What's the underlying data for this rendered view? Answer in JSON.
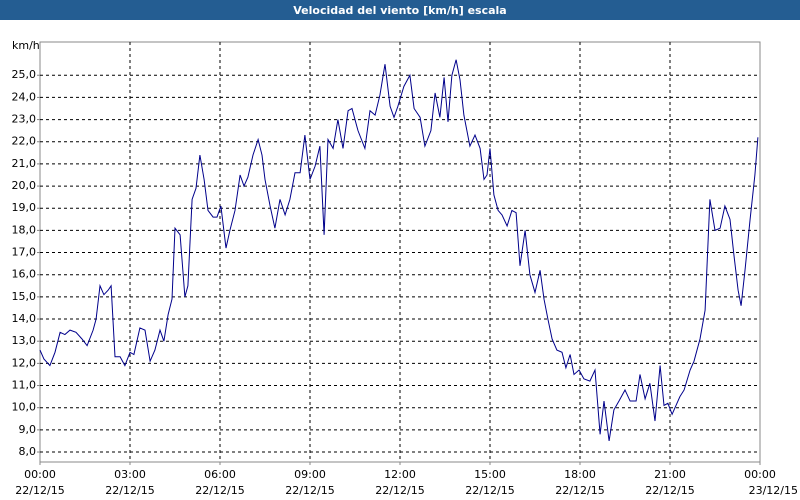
{
  "chart_data": {
    "type": "line",
    "title": "Velocidad del viento [km/h] escala",
    "y_label": "km/h",
    "color": "#00008b",
    "grid": true,
    "x": [
      0,
      0.13,
      0.33,
      0.5,
      0.67,
      0.83,
      1.0,
      1.2,
      1.4,
      1.57,
      1.77,
      1.87,
      2.0,
      2.13,
      2.27,
      2.37,
      2.5,
      2.67,
      2.83,
      3.0,
      3.13,
      3.33,
      3.5,
      3.67,
      3.83,
      4.0,
      4.13,
      4.27,
      4.4,
      4.5,
      4.67,
      4.83,
      4.93,
      5.07,
      5.2,
      5.33,
      5.47,
      5.6,
      5.77,
      5.9,
      6.03,
      6.2,
      6.33,
      6.5,
      6.67,
      6.8,
      6.93,
      7.1,
      7.27,
      7.4,
      7.5,
      7.67,
      7.83,
      8.0,
      8.17,
      8.33,
      8.5,
      8.67,
      8.83,
      9.0,
      9.17,
      9.33,
      9.47,
      9.6,
      9.77,
      9.93,
      10.1,
      10.27,
      10.4,
      10.6,
      10.83,
      11.0,
      11.17,
      11.33,
      11.5,
      11.67,
      11.8,
      11.93,
      12.13,
      12.33,
      12.47,
      12.67,
      12.83,
      13.03,
      13.17,
      13.33,
      13.47,
      13.6,
      13.73,
      13.87,
      14.0,
      14.13,
      14.33,
      14.5,
      14.67,
      14.8,
      14.9,
      15.0,
      15.13,
      15.27,
      15.4,
      15.57,
      15.73,
      15.87,
      16.0,
      16.17,
      16.33,
      16.5,
      16.67,
      16.8,
      16.93,
      17.07,
      17.23,
      17.4,
      17.53,
      17.67,
      17.8,
      17.97,
      18.13,
      18.33,
      18.5,
      18.67,
      18.8,
      18.97,
      19.13,
      19.3,
      19.5,
      19.67,
      19.87,
      20.0,
      20.17,
      20.33,
      20.5,
      20.67,
      20.8,
      20.93,
      21.07,
      21.2,
      21.33,
      21.47,
      21.67,
      21.8,
      22.0,
      22.17,
      22.33,
      22.5,
      22.67,
      22.83,
      23.0,
      23.13,
      23.27,
      23.37,
      23.5,
      23.67,
      23.83,
      23.93
    ],
    "values": [
      12.6,
      12.2,
      11.9,
      12.5,
      13.4,
      13.3,
      13.5,
      13.4,
      13.1,
      12.8,
      13.5,
      14.0,
      15.5,
      15.1,
      15.3,
      15.5,
      12.3,
      12.3,
      11.9,
      12.5,
      12.4,
      13.6,
      13.5,
      12.1,
      12.6,
      13.5,
      13.0,
      14.2,
      14.9,
      18.1,
      17.8,
      15.0,
      15.5,
      19.4,
      19.9,
      21.4,
      20.3,
      18.9,
      18.6,
      18.6,
      19.1,
      17.2,
      18.0,
      18.9,
      20.5,
      20.0,
      20.4,
      21.4,
      22.1,
      21.4,
      20.3,
      19.1,
      18.1,
      19.4,
      18.7,
      19.4,
      20.6,
      20.6,
      22.3,
      20.3,
      20.9,
      21.8,
      17.8,
      22.1,
      21.7,
      23.0,
      21.7,
      23.4,
      23.5,
      22.5,
      21.7,
      23.4,
      23.2,
      24.1,
      25.5,
      23.6,
      23.1,
      23.6,
      24.5,
      25.0,
      23.5,
      23.1,
      21.8,
      22.5,
      24.2,
      23.1,
      24.9,
      22.9,
      25.0,
      25.7,
      24.8,
      23.2,
      21.8,
      22.3,
      21.7,
      20.3,
      20.5,
      21.7,
      19.6,
      18.9,
      18.7,
      18.2,
      18.9,
      18.8,
      16.4,
      18.0,
      16.0,
      15.2,
      16.2,
      14.9,
      14.0,
      13.1,
      12.6,
      12.5,
      11.8,
      12.4,
      11.5,
      11.7,
      11.3,
      11.2,
      11.7,
      8.8,
      10.3,
      8.5,
      9.9,
      10.3,
      10.8,
      10.3,
      10.3,
      11.5,
      10.4,
      11.1,
      9.4,
      11.9,
      10.1,
      10.2,
      9.7,
      10.1,
      10.5,
      10.8,
      11.7,
      12.1,
      13.1,
      14.4,
      19.4,
      18.0,
      18.1,
      19.1,
      18.5,
      16.9,
      15.3,
      14.6,
      16.2,
      18.5,
      20.5,
      22.2
    ],
    "xlim": [
      0,
      24
    ],
    "xticks": [
      {
        "value": 0,
        "label": "00:00",
        "date": "22/12/15"
      },
      {
        "value": 3,
        "label": "03:00",
        "date": "22/12/15"
      },
      {
        "value": 6,
        "label": "06:00",
        "date": "22/12/15"
      },
      {
        "value": 9,
        "label": "09:00",
        "date": "22/12/15"
      },
      {
        "value": 12,
        "label": "12:00",
        "date": "22/12/15"
      },
      {
        "value": 15,
        "label": "15:00",
        "date": "22/12/15"
      },
      {
        "value": 18,
        "label": "18:00",
        "date": "22/12/15"
      },
      {
        "value": 21,
        "label": "21:00",
        "date": "22/12/15"
      },
      {
        "value": 24,
        "label": "00:00",
        "date": "23/12/15"
      }
    ],
    "ylim": [
      7.55,
      26.5
    ],
    "yticks": [
      {
        "value": 8,
        "label": "8,0"
      },
      {
        "value": 9,
        "label": "9,0"
      },
      {
        "value": 10,
        "label": "10,0"
      },
      {
        "value": 11,
        "label": "11,0"
      },
      {
        "value": 12,
        "label": "12,0"
      },
      {
        "value": 13,
        "label": "13,0"
      },
      {
        "value": 14,
        "label": "14,0"
      },
      {
        "value": 15,
        "label": "15,0"
      },
      {
        "value": 16,
        "label": "16,0"
      },
      {
        "value": 17,
        "label": "17,0"
      },
      {
        "value": 18,
        "label": "18,0"
      },
      {
        "value": 19,
        "label": "19,0"
      },
      {
        "value": 20,
        "label": "20,0"
      },
      {
        "value": 21,
        "label": "21,0"
      },
      {
        "value": 22,
        "label": "22,0"
      },
      {
        "value": 23,
        "label": "23,0"
      },
      {
        "value": 24,
        "label": "24,0"
      },
      {
        "value": 25,
        "label": "25,0"
      }
    ]
  }
}
